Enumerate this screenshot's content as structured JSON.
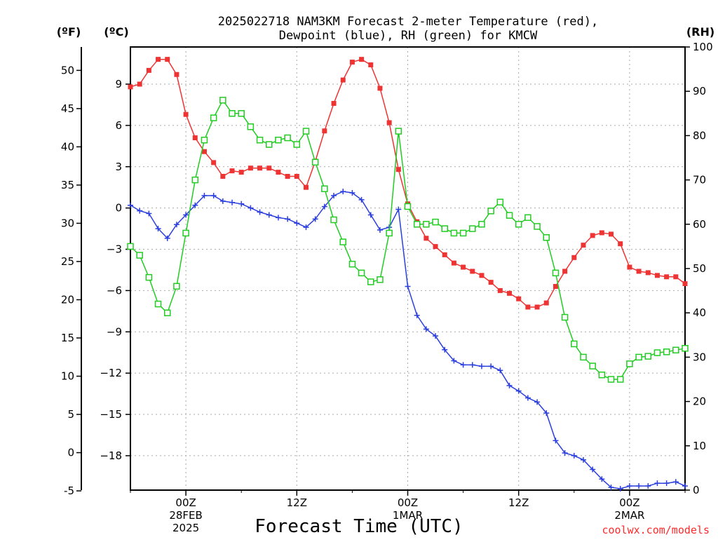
{
  "chart_data": {
    "type": "line",
    "title_line1": "2025022718 NAM3KM Forecast 2-meter Temperature (red),",
    "title_line2": "Dewpoint (blue), RH (green) for KMCW",
    "xlabel": "Forecast Time (UTC)",
    "credit": "coolwx.com/models",
    "unit_f": "(ºF)",
    "unit_c": "(ºC)",
    "unit_rh": "(RH)",
    "ylim_c": [
      -20.5,
      11.7
    ],
    "ylim_rh": [
      0,
      100
    ],
    "ylim_f_ticks": [
      -5,
      0,
      5,
      10,
      15,
      20,
      25,
      30,
      35,
      40,
      45,
      50
    ],
    "y_c_ticks": [
      -18,
      -15,
      -12,
      -9,
      -6,
      -3,
      0,
      3,
      6,
      9
    ],
    "y_rh_ticks": [
      0,
      10,
      20,
      30,
      40,
      50,
      60,
      70,
      80,
      90,
      100
    ],
    "x_hours_range": [
      -6,
      54
    ],
    "x_ticks": [
      {
        "hour": 0,
        "line1": "00Z",
        "line2": "28FEB",
        "line3": "2025"
      },
      {
        "hour": 12,
        "line1": "12Z",
        "line2": "",
        "line3": ""
      },
      {
        "hour": 24,
        "line1": "00Z",
        "line2": "1MAR",
        "line3": ""
      },
      {
        "hour": 36,
        "line1": "12Z",
        "line2": "",
        "line3": ""
      },
      {
        "hour": 48,
        "line1": "00Z",
        "line2": "2MAR",
        "line3": ""
      }
    ],
    "grid": true,
    "colors": {
      "temperature": "#ee3333",
      "dewpoint": "#2a3fdd",
      "rh": "#22cc22"
    },
    "series": [
      {
        "name": "Temperature",
        "axis": "c",
        "x": [
          -6,
          -5,
          -4,
          -3,
          -2,
          -1,
          0,
          1,
          2,
          3,
          4,
          5,
          6,
          7,
          8,
          9,
          10,
          11,
          12,
          13,
          14,
          15,
          16,
          17,
          18,
          19,
          20,
          21,
          22,
          23,
          24,
          25,
          26,
          27,
          28,
          29,
          30,
          31,
          32,
          33,
          34,
          35,
          36,
          37,
          38,
          39,
          40,
          41,
          42,
          43,
          44,
          45,
          46,
          47,
          48,
          49,
          50,
          51,
          52,
          53,
          54
        ],
        "values": [
          8.8,
          9.0,
          10.0,
          10.8,
          10.8,
          9.7,
          6.8,
          5.1,
          4.1,
          3.3,
          2.3,
          2.7,
          2.6,
          2.9,
          2.9,
          2.9,
          2.6,
          2.3,
          2.3,
          1.5,
          3.4,
          5.6,
          7.6,
          9.3,
          10.6,
          10.8,
          10.4,
          8.7,
          6.2,
          2.8,
          0.3,
          -1.0,
          -2.2,
          -2.8,
          -3.4,
          -4.0,
          -4.3,
          -4.6,
          -4.9,
          -5.4,
          -6.0,
          -6.2,
          -6.6,
          -7.2,
          -7.2,
          -6.9,
          -5.7,
          -4.6,
          -3.6,
          -2.7,
          -2.0,
          -1.8,
          -1.9,
          -2.6,
          -4.3,
          -4.6,
          -4.7,
          -4.9,
          -5.0,
          -5.0,
          -5.5
        ]
      },
      {
        "name": "Dewpoint",
        "axis": "c",
        "x": [
          -6,
          -5,
          -4,
          -3,
          -2,
          -1,
          0,
          1,
          2,
          3,
          4,
          5,
          6,
          7,
          8,
          9,
          10,
          11,
          12,
          13,
          14,
          15,
          16,
          17,
          18,
          19,
          20,
          21,
          22,
          23,
          24,
          25,
          26,
          27,
          28,
          29,
          30,
          31,
          32,
          33,
          34,
          35,
          36,
          37,
          38,
          39,
          40,
          41,
          42,
          43,
          44,
          45,
          46,
          47,
          48,
          49,
          50,
          51,
          52,
          53,
          54
        ],
        "values": [
          0.2,
          -0.2,
          -0.4,
          -1.5,
          -2.2,
          -1.2,
          -0.5,
          0.2,
          0.9,
          0.9,
          0.5,
          0.4,
          0.3,
          0.0,
          -0.3,
          -0.5,
          -0.7,
          -0.8,
          -1.1,
          -1.4,
          -0.8,
          0.1,
          0.9,
          1.2,
          1.1,
          0.6,
          -0.5,
          -1.6,
          -1.4,
          -0.1,
          -5.7,
          -7.8,
          -8.8,
          -9.3,
          -10.3,
          -11.1,
          -11.4,
          -11.4,
          -11.5,
          -11.5,
          -11.8,
          -12.9,
          -13.3,
          -13.8,
          -14.1,
          -14.9,
          -16.9,
          -17.8,
          -18.0,
          -18.3,
          -19.0,
          -19.7,
          -20.3,
          -20.4,
          -20.2,
          -20.2,
          -20.2,
          -20.0,
          -20.0,
          -19.9,
          -20.2
        ]
      },
      {
        "name": "RH",
        "axis": "rh",
        "x": [
          -6,
          -5,
          -4,
          -3,
          -2,
          -1,
          0,
          1,
          2,
          3,
          4,
          5,
          6,
          7,
          8,
          9,
          10,
          11,
          12,
          13,
          14,
          15,
          16,
          17,
          18,
          19,
          20,
          21,
          22,
          23,
          24,
          25,
          26,
          27,
          28,
          29,
          30,
          31,
          32,
          33,
          34,
          35,
          36,
          37,
          38,
          39,
          40,
          41,
          42,
          43,
          44,
          45,
          46,
          47,
          48,
          49,
          50,
          51,
          52,
          53,
          54
        ],
        "values": [
          55,
          53,
          48,
          42,
          40,
          46,
          58,
          70,
          79,
          84,
          88,
          85,
          85,
          82,
          79,
          78,
          79,
          79.5,
          78,
          81,
          74,
          68,
          61,
          56,
          51,
          49,
          47,
          47.5,
          58,
          81,
          64,
          60,
          60,
          60.5,
          59,
          58,
          58,
          59,
          60,
          63,
          65,
          62,
          60,
          61.5,
          59.5,
          57,
          49,
          39,
          33,
          30,
          28,
          26,
          25,
          25,
          28.5,
          30,
          30.2,
          31,
          31.2,
          31.6,
          32
        ]
      }
    ]
  }
}
